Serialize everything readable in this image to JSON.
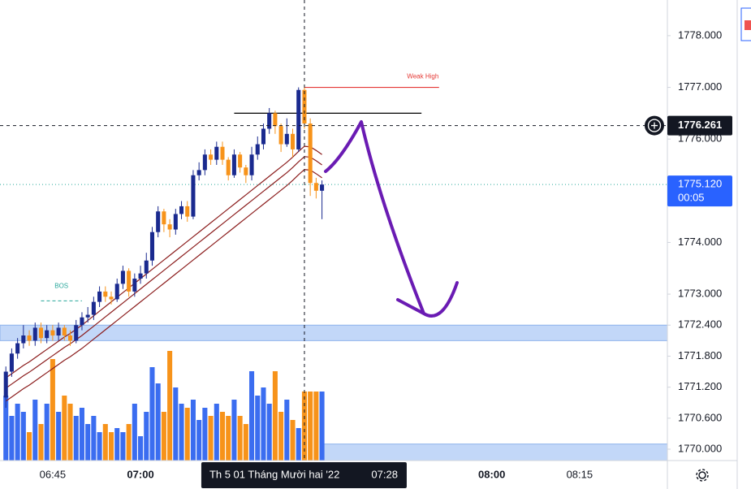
{
  "chart_data": {
    "type": "candlestick",
    "x": [
      "06:37",
      "06:38",
      "06:39",
      "06:40",
      "06:41",
      "06:42",
      "06:43",
      "06:44",
      "06:45",
      "06:46",
      "06:47",
      "06:48",
      "06:49",
      "06:50",
      "06:51",
      "06:52",
      "06:53",
      "06:54",
      "06:55",
      "06:56",
      "06:57",
      "06:58",
      "06:59",
      "07:00",
      "07:01",
      "07:02",
      "07:03",
      "07:04",
      "07:05",
      "07:06",
      "07:07",
      "07:08",
      "07:09",
      "07:10",
      "07:11",
      "07:12",
      "07:13",
      "07:14",
      "07:15",
      "07:16",
      "07:17",
      "07:18",
      "07:19",
      "07:20",
      "07:21",
      "07:22",
      "07:23",
      "07:24",
      "07:25",
      "07:26",
      "07:27",
      "07:28",
      "07:29",
      "07:30",
      "07:31"
    ],
    "open": [
      1771.0,
      1771.5,
      1771.85,
      1772.05,
      1772.2,
      1772.1,
      1772.35,
      1772.15,
      1772.3,
      1772.2,
      1772.35,
      1772.2,
      1772.1,
      1772.4,
      1772.55,
      1772.6,
      1772.85,
      1773.05,
      1772.95,
      1772.9,
      1773.2,
      1773.45,
      1773.05,
      1773.3,
      1773.4,
      1773.65,
      1774.2,
      1774.6,
      1774.35,
      1774.25,
      1774.55,
      1774.7,
      1774.5,
      1775.3,
      1775.4,
      1775.7,
      1775.6,
      1775.85,
      1775.6,
      1775.3,
      1775.7,
      1775.45,
      1775.3,
      1775.7,
      1775.9,
      1776.2,
      1776.5,
      1776.25,
      1775.9,
      1776.1,
      1775.8,
      1776.95,
      1776.3,
      1775.15,
      1775.0
    ],
    "high": [
      1771.6,
      1771.95,
      1772.15,
      1772.4,
      1772.3,
      1772.45,
      1772.45,
      1772.4,
      1772.4,
      1772.45,
      1772.4,
      1772.3,
      1772.5,
      1772.65,
      1772.75,
      1772.95,
      1773.15,
      1773.15,
      1773.05,
      1773.3,
      1773.55,
      1773.5,
      1773.4,
      1773.55,
      1773.8,
      1774.3,
      1774.7,
      1774.65,
      1774.45,
      1774.65,
      1774.8,
      1774.8,
      1775.4,
      1775.55,
      1775.8,
      1775.8,
      1775.95,
      1775.95,
      1775.65,
      1775.8,
      1775.75,
      1775.5,
      1775.85,
      1776.05,
      1776.3,
      1776.6,
      1776.55,
      1776.3,
      1776.4,
      1776.2,
      1777.0,
      1777.0,
      1776.4,
      1775.25,
      1775.2
    ],
    "low": [
      1770.8,
      1771.4,
      1771.75,
      1771.95,
      1772.0,
      1772.0,
      1772.05,
      1772.05,
      1772.1,
      1772.1,
      1772.1,
      1772.0,
      1772.05,
      1772.3,
      1772.45,
      1772.5,
      1772.75,
      1772.85,
      1772.8,
      1772.85,
      1773.1,
      1772.95,
      1772.95,
      1773.2,
      1773.3,
      1773.55,
      1774.1,
      1774.2,
      1774.1,
      1774.15,
      1774.45,
      1774.4,
      1774.45,
      1775.2,
      1775.3,
      1775.5,
      1775.5,
      1775.5,
      1775.2,
      1775.25,
      1775.35,
      1775.15,
      1775.2,
      1775.6,
      1775.8,
      1776.1,
      1776.1,
      1775.75,
      1775.85,
      1775.65,
      1775.75,
      1776.2,
      1774.9,
      1774.85,
      1774.45
    ],
    "close": [
      1771.5,
      1771.85,
      1772.05,
      1772.2,
      1772.1,
      1772.35,
      1772.15,
      1772.3,
      1772.2,
      1772.35,
      1772.2,
      1772.1,
      1772.4,
      1772.55,
      1772.6,
      1772.85,
      1773.05,
      1772.95,
      1772.9,
      1773.2,
      1773.45,
      1773.05,
      1773.3,
      1773.4,
      1773.65,
      1774.2,
      1774.6,
      1774.35,
      1774.25,
      1774.55,
      1774.7,
      1774.5,
      1775.3,
      1775.4,
      1775.7,
      1775.6,
      1775.85,
      1775.6,
      1775.3,
      1775.7,
      1775.45,
      1775.3,
      1775.7,
      1775.9,
      1776.2,
      1776.5,
      1776.25,
      1775.9,
      1776.1,
      1775.8,
      1776.95,
      1776.3,
      1775.15,
      1775.0,
      1775.12
    ],
    "volume": [
      80,
      55,
      70,
      60,
      35,
      75,
      45,
      70,
      125,
      60,
      80,
      70,
      55,
      65,
      45,
      55,
      35,
      45,
      35,
      40,
      35,
      45,
      70,
      30,
      60,
      115,
      95,
      60,
      135,
      90,
      70,
      65,
      75,
      50,
      65,
      55,
      70,
      60,
      55,
      75,
      55,
      45,
      110,
      80,
      90,
      70,
      110,
      60,
      75,
      50,
      40,
      85,
      85,
      85,
      85
    ],
    "up_color": "#1a2a8f",
    "down_color": "#f7931a",
    "volume_up_color": "#3b6df0",
    "volume_down_color": "#f7931a",
    "moving_averages": [
      {
        "color": "#8b1c1c",
        "values": [
          1771.38,
          1771.46,
          1771.54,
          1771.62,
          1771.69,
          1771.77,
          1771.85,
          1771.93,
          1772.01,
          1772.09,
          1772.17,
          1772.24,
          1772.32,
          1772.4,
          1772.49,
          1772.58,
          1772.67,
          1772.76,
          1772.85,
          1772.94,
          1773.03,
          1773.12,
          1773.21,
          1773.3,
          1773.39,
          1773.48,
          1773.57,
          1773.66,
          1773.75,
          1773.84,
          1773.93,
          1774.02,
          1774.11,
          1774.2,
          1774.29,
          1774.38,
          1774.47,
          1774.56,
          1774.65,
          1774.74,
          1774.83,
          1774.92,
          1775.01,
          1775.1,
          1775.19,
          1775.28,
          1775.37,
          1775.46,
          1775.55,
          1775.65,
          1775.76,
          1775.86,
          1775.85,
          1775.78,
          1775.7
        ]
      },
      {
        "color": "#8b1c1c",
        "values": [
          1771.18,
          1771.26,
          1771.34,
          1771.42,
          1771.49,
          1771.57,
          1771.65,
          1771.73,
          1771.81,
          1771.89,
          1771.97,
          1772.04,
          1772.12,
          1772.2,
          1772.29,
          1772.38,
          1772.47,
          1772.56,
          1772.65,
          1772.74,
          1772.83,
          1772.92,
          1773.01,
          1773.1,
          1773.19,
          1773.28,
          1773.37,
          1773.46,
          1773.55,
          1773.64,
          1773.73,
          1773.82,
          1773.91,
          1774.0,
          1774.09,
          1774.18,
          1774.27,
          1774.36,
          1774.45,
          1774.54,
          1774.63,
          1774.72,
          1774.81,
          1774.9,
          1774.99,
          1775.08,
          1775.17,
          1775.26,
          1775.35,
          1775.45,
          1775.56,
          1775.66,
          1775.65,
          1775.58,
          1775.5
        ]
      },
      {
        "color": "#8b1c1c",
        "values": [
          1770.93,
          1771.01,
          1771.09,
          1771.17,
          1771.24,
          1771.32,
          1771.4,
          1771.48,
          1771.56,
          1771.64,
          1771.72,
          1771.79,
          1771.87,
          1771.95,
          1772.04,
          1772.13,
          1772.22,
          1772.31,
          1772.4,
          1772.49,
          1772.58,
          1772.67,
          1772.76,
          1772.85,
          1772.94,
          1773.03,
          1773.12,
          1773.21,
          1773.3,
          1773.39,
          1773.48,
          1773.57,
          1773.66,
          1773.75,
          1773.84,
          1773.93,
          1774.02,
          1774.11,
          1774.2,
          1774.29,
          1774.38,
          1774.47,
          1774.56,
          1774.65,
          1774.74,
          1774.83,
          1774.92,
          1775.01,
          1775.1,
          1775.2,
          1775.31,
          1775.41,
          1775.4,
          1775.33,
          1775.25
        ]
      }
    ],
    "xlim": [
      "06:36",
      "08:30"
    ],
    "ylim": [
      1769.78,
      1778.69
    ],
    "xticks": [
      "06:45",
      "07:00",
      "08:00",
      "08:15"
    ],
    "yticks": [
      {
        "value": 1770,
        "label": "1770.000"
      },
      {
        "value": 1770.6,
        "label": "1770.600"
      },
      {
        "value": 1771.2,
        "label": "1771.200"
      },
      {
        "value": 1771.8,
        "label": "1771.800"
      },
      {
        "value": 1772.4,
        "label": "1772.400"
      },
      {
        "value": 1773,
        "label": "1773.000"
      },
      {
        "value": 1774,
        "label": "1774.000"
      },
      {
        "value": 1776,
        "label": "1776.000"
      },
      {
        "value": 1777,
        "label": "1777.000"
      },
      {
        "value": 1778,
        "label": "1778.000"
      }
    ],
    "grid": false,
    "zones": [
      {
        "prices": [
          1772.1,
          1772.4
        ],
        "x": [
          "06:36",
          "08:30"
        ],
        "color": "#bbd3f7"
      },
      {
        "prices": [
          1769.78,
          1770.1
        ],
        "x": [
          "07:31",
          "08:30"
        ],
        "color": "#bbd3f7"
      }
    ],
    "levels": [
      {
        "price": 1776.5,
        "x": [
          "07:16",
          "07:48"
        ],
        "color": "#000000"
      },
      {
        "price": 1777,
        "x": [
          "07:28",
          "07:51"
        ],
        "color": "#e53935",
        "label": "Weak High"
      }
    ],
    "bos": {
      "label": "BOS",
      "price": 1772.87,
      "x": [
        "06:43",
        "06:50"
      ],
      "color": "#26a69a"
    },
    "last_price": {
      "value": 1775.12,
      "label": "1775.120",
      "countdown": "00:05",
      "color": "#2962ff"
    },
    "crosshair": {
      "price": {
        "value": 1776.261,
        "label": "1776.261"
      },
      "time": "07:28",
      "date_label": "Th 5 01 Tháng Mười hai '22"
    }
  }
}
